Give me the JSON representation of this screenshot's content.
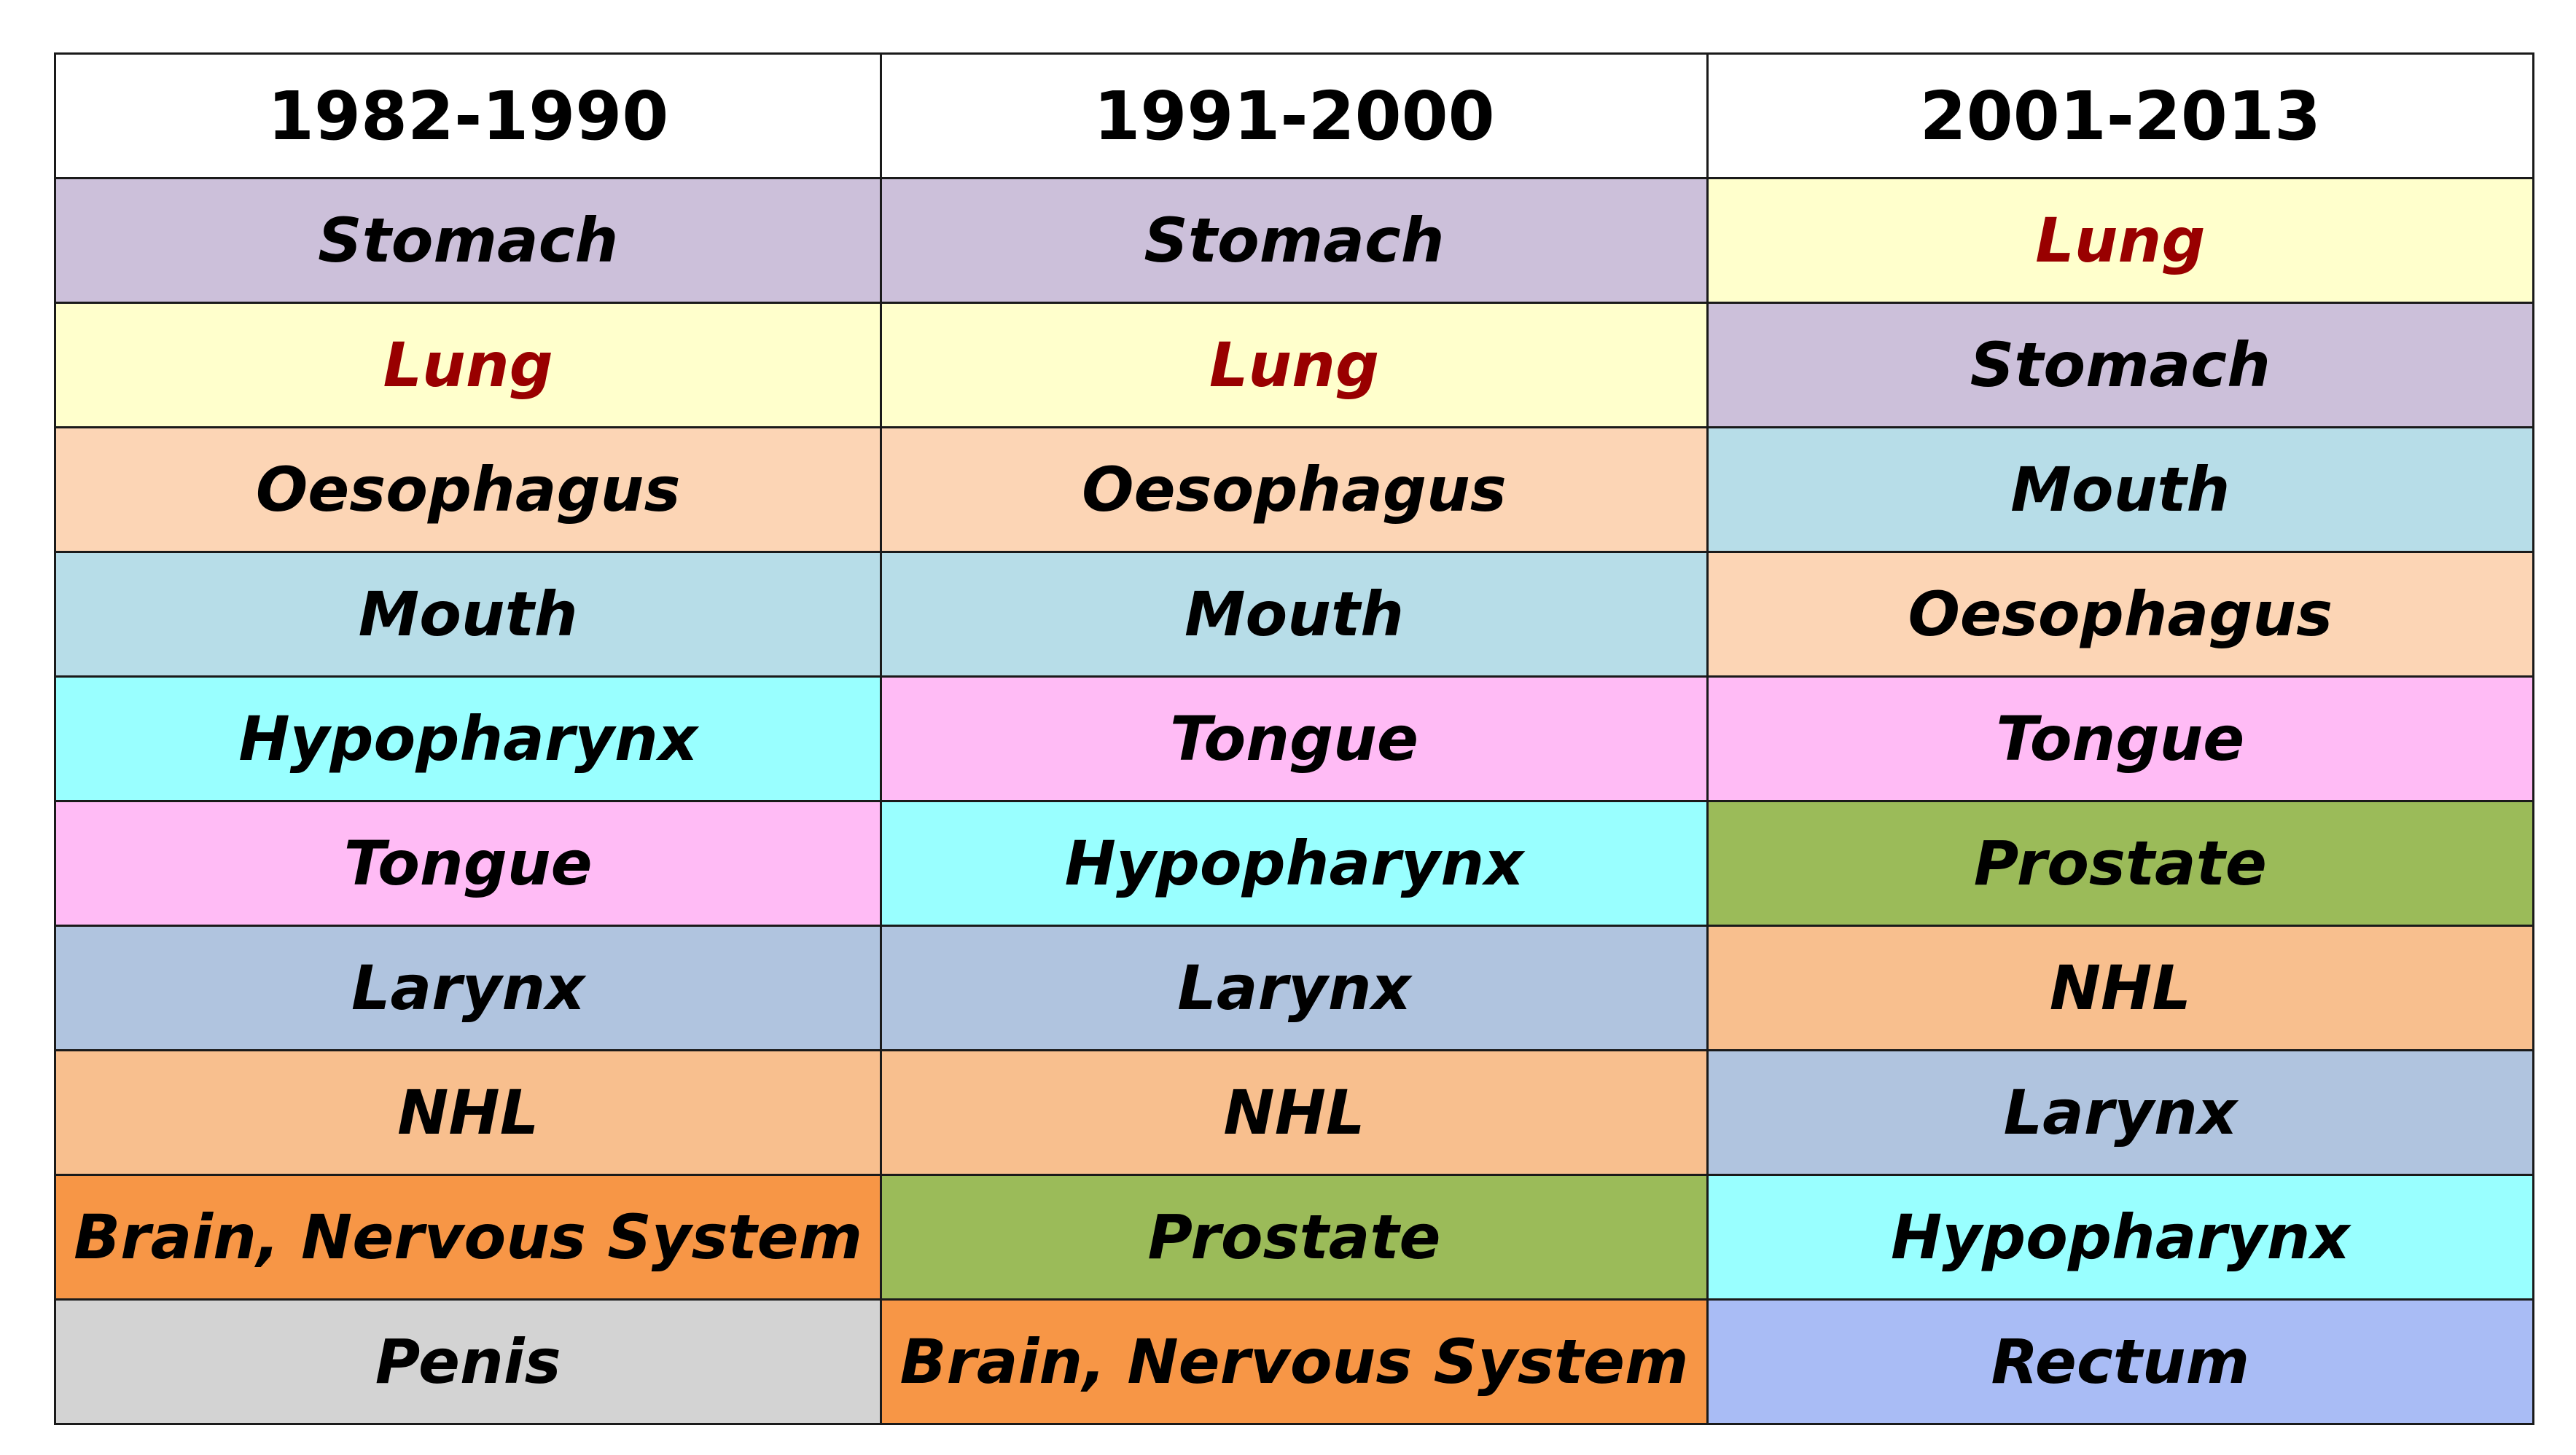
{
  "chart_data": {
    "type": "table",
    "columns": [
      "1982-1990",
      "1991-2000",
      "2001-2013"
    ],
    "rows": [
      [
        "Stomach",
        "Stomach",
        "Lung"
      ],
      [
        "Lung",
        "Lung",
        "Stomach"
      ],
      [
        "Oesophagus",
        "Oesophagus",
        "Mouth"
      ],
      [
        "Mouth",
        "Mouth",
        "Oesophagus"
      ],
      [
        "Hypopharynx",
        "Tongue",
        "Tongue"
      ],
      [
        "Tongue",
        "Hypopharynx",
        "Prostate"
      ],
      [
        "Larynx",
        "Larynx",
        "NHL"
      ],
      [
        "NHL",
        "NHL",
        "Larynx"
      ],
      [
        "Brain, Nervous System",
        "Prostate",
        "Hypopharynx"
      ],
      [
        "Penis",
        "Brain, Nervous System",
        "Rectum"
      ]
    ]
  },
  "colors": {
    "Stomach": "#ccc0da",
    "Lung": "#ffffcc",
    "Oesophagus": "#fcd5b5",
    "Mouth": "#b7dde8",
    "Hypopharynx": "#99ffff",
    "Tongue": "#ffbbf5",
    "Larynx": "#b0c4df",
    "NHL": "#f8bf8e",
    "Brain, Nervous System": "#f79646",
    "Penis": "#d3d3d3",
    "Prostate": "#9bbb59",
    "Rectum": "#a9bcf5"
  },
  "text_colors": {
    "default": "#000000",
    "Lung": "#990000"
  }
}
